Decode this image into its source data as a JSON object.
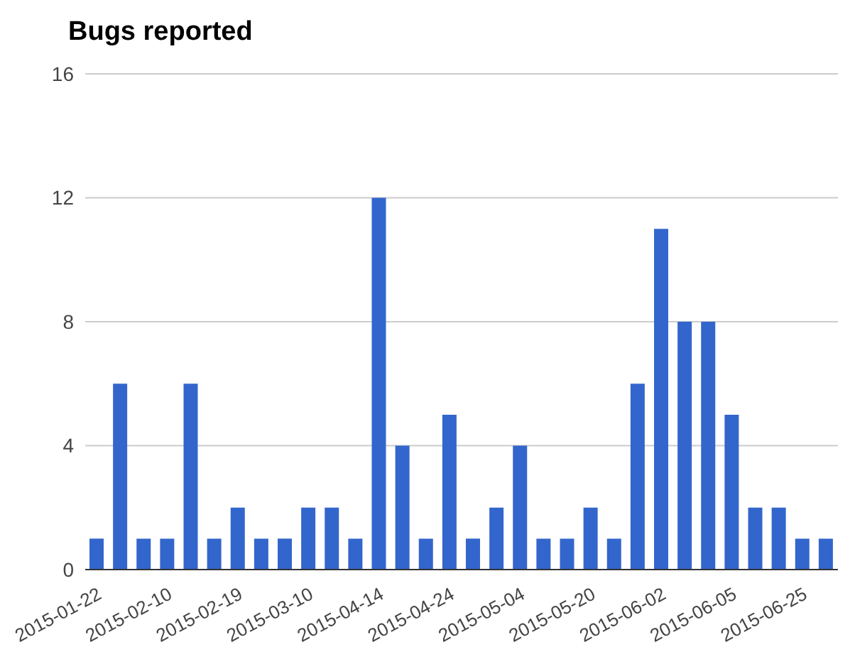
{
  "chart_data": {
    "type": "bar",
    "title": "Bugs reported",
    "categories": [
      "2015-01-22",
      null,
      null,
      "2015-02-10",
      null,
      null,
      "2015-02-19",
      null,
      null,
      "2015-03-10",
      null,
      null,
      "2015-04-14",
      null,
      null,
      "2015-04-24",
      null,
      null,
      "2015-05-04",
      null,
      null,
      "2015-05-20",
      null,
      null,
      "2015-06-02",
      null,
      null,
      "2015-06-05",
      null,
      null,
      "2015-06-25",
      null
    ],
    "values": [
      1,
      6,
      1,
      1,
      6,
      1,
      2,
      1,
      1,
      2,
      2,
      1,
      12,
      4,
      1,
      5,
      1,
      2,
      4,
      1,
      1,
      2,
      1,
      6,
      11,
      8,
      8,
      5,
      2,
      2,
      1,
      1
    ],
    "color": "#3366cc",
    "ylim": [
      0,
      16
    ],
    "yticks": [
      0,
      4,
      8,
      12,
      16
    ],
    "grid": "y"
  }
}
